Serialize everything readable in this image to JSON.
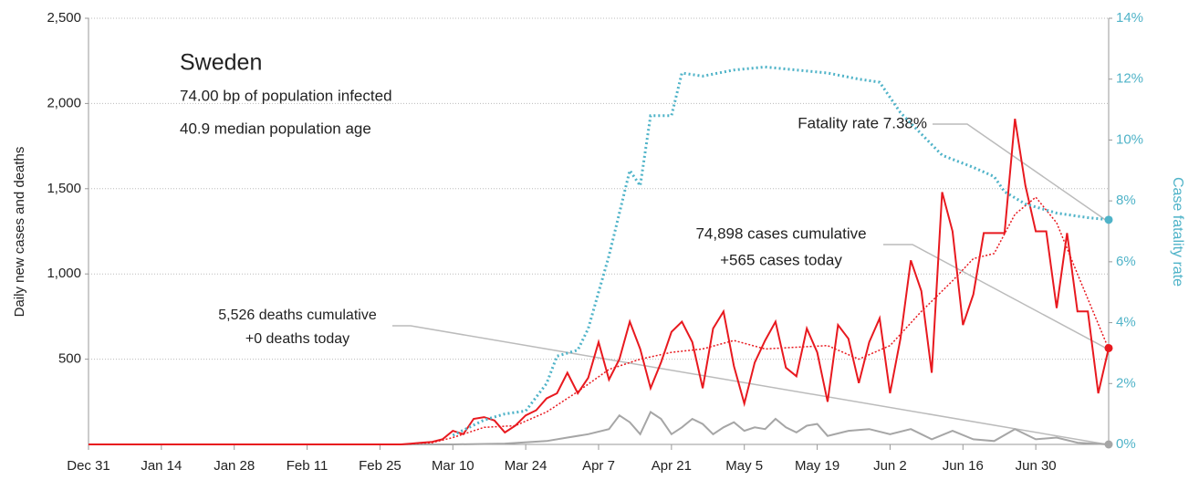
{
  "chart_data": {
    "type": "line",
    "ylabel": "Daily new cases and deaths",
    "y2label": "Case fatality rate",
    "annotations": {
      "title": "Sweden",
      "infected": "74.00 bp of population infected",
      "age": "40.9 median population age",
      "fatality": "Fatality rate 7.38%",
      "cases_cum": "74,898 cases cumulative",
      "cases_today": "+565 cases today",
      "deaths_cum": "5,526 deaths cumulative",
      "deaths_today": "+0 deaths today"
    },
    "xlim": [
      0,
      196
    ],
    "xticks": [
      {
        "value": 0,
        "label": "Dec 31"
      },
      {
        "value": 14,
        "label": "Jan 14"
      },
      {
        "value": 28,
        "label": "Jan 28"
      },
      {
        "value": 42,
        "label": "Feb 11"
      },
      {
        "value": 56,
        "label": "Feb 25"
      },
      {
        "value": 70,
        "label": "Mar 10"
      },
      {
        "value": 84,
        "label": "Mar 24"
      },
      {
        "value": 98,
        "label": "Apr 7"
      },
      {
        "value": 112,
        "label": "Apr 21"
      },
      {
        "value": 126,
        "label": "May 5"
      },
      {
        "value": 140,
        "label": "May 19"
      },
      {
        "value": 154,
        "label": "Jun 2"
      },
      {
        "value": 168,
        "label": "Jun 16"
      },
      {
        "value": 182,
        "label": "Jun 30"
      }
    ],
    "ylim": [
      0,
      2500
    ],
    "yticks": [
      {
        "value": 500,
        "label": "500"
      },
      {
        "value": 1000,
        "label": "1,000"
      },
      {
        "value": 1500,
        "label": "1,500"
      },
      {
        "value": 2000,
        "label": "2,000"
      },
      {
        "value": 2500,
        "label": "2,500"
      }
    ],
    "y2lim": [
      0,
      14
    ],
    "y2ticks": [
      {
        "value": 0,
        "label": "0%"
      },
      {
        "value": 2,
        "label": "2%"
      },
      {
        "value": 4,
        "label": "4%"
      },
      {
        "value": 6,
        "label": "6%"
      },
      {
        "value": 8,
        "label": "8%"
      },
      {
        "value": 10,
        "label": "10%"
      },
      {
        "value": 12,
        "label": "12%"
      },
      {
        "value": 14,
        "label": "14%"
      }
    ],
    "grid": true,
    "series": [
      {
        "name": "Daily cases",
        "color": "#e8191f",
        "style": "solid",
        "x": [
          0,
          60,
          62,
          64,
          66,
          68,
          70,
          72,
          74,
          76,
          78,
          80,
          82,
          84,
          86,
          88,
          90,
          92,
          94,
          96,
          98,
          100,
          102,
          104,
          106,
          108,
          110,
          112,
          114,
          116,
          118,
          120,
          122,
          124,
          126,
          128,
          130,
          132,
          134,
          136,
          138,
          140,
          142,
          144,
          146,
          148,
          150,
          152,
          154,
          156,
          158,
          160,
          162,
          164,
          166,
          168,
          170,
          172,
          174,
          176,
          178,
          180,
          182,
          184,
          186,
          188,
          190,
          192,
          194,
          196
        ],
        "values": [
          0,
          0,
          5,
          10,
          15,
          30,
          80,
          60,
          150,
          160,
          140,
          70,
          110,
          170,
          200,
          270,
          300,
          420,
          300,
          390,
          600,
          380,
          500,
          720,
          560,
          330,
          480,
          660,
          720,
          600,
          330,
          680,
          780,
          460,
          240,
          480,
          610,
          720,
          450,
          400,
          680,
          540,
          250,
          700,
          620,
          360,
          600,
          740,
          300,
          620,
          1080,
          900,
          420,
          1480,
          1250,
          700,
          880,
          1240,
          1240,
          1240,
          1910,
          1520,
          1250,
          1250,
          800,
          1240,
          780,
          780,
          300,
          565
        ]
      },
      {
        "name": "Cases average",
        "color": "#e8191f",
        "style": "dotted",
        "x": [
          0,
          60,
          66,
          70,
          76,
          82,
          88,
          94,
          100,
          106,
          112,
          118,
          124,
          130,
          136,
          142,
          148,
          154,
          160,
          166,
          170,
          174,
          178,
          182,
          186,
          190,
          196
        ],
        "values": [
          0,
          0,
          10,
          40,
          100,
          110,
          190,
          310,
          440,
          500,
          540,
          560,
          610,
          560,
          570,
          580,
          500,
          580,
          780,
          960,
          1090,
          1120,
          1350,
          1450,
          1300,
          1000,
          560
        ]
      },
      {
        "name": "Daily deaths",
        "color": "#a6a6a6",
        "style": "solid",
        "x": [
          0,
          70,
          80,
          88,
          92,
          96,
          100,
          102,
          104,
          106,
          108,
          110,
          112,
          114,
          116,
          118,
          120,
          122,
          124,
          126,
          128,
          130,
          132,
          134,
          136,
          138,
          140,
          142,
          146,
          150,
          154,
          158,
          162,
          166,
          170,
          174,
          178,
          182,
          186,
          190,
          196
        ],
        "values": [
          0,
          0,
          5,
          20,
          40,
          60,
          90,
          170,
          130,
          60,
          190,
          150,
          60,
          100,
          150,
          120,
          60,
          100,
          130,
          80,
          100,
          90,
          150,
          100,
          70,
          110,
          120,
          50,
          80,
          90,
          60,
          90,
          30,
          80,
          30,
          20,
          90,
          30,
          40,
          10,
          0
        ]
      },
      {
        "name": "Case fatality rate",
        "color": "#4fb3c8",
        "style": "dotted",
        "axis": "y2",
        "x": [
          70,
          76,
          80,
          84,
          88,
          90,
          94,
          96,
          100,
          104,
          106,
          108,
          112,
          114,
          118,
          124,
          130,
          136,
          142,
          148,
          152,
          156,
          160,
          164,
          170,
          174,
          176,
          180,
          186,
          192,
          196
        ],
        "values": [
          0.3,
          0.8,
          1,
          1.1,
          2,
          2.9,
          3.1,
          3.8,
          6.2,
          9,
          8.5,
          10.8,
          10.8,
          12.2,
          12.1,
          12.3,
          12.4,
          12.3,
          12.2,
          12,
          11.9,
          10.9,
          10.2,
          9.5,
          9.1,
          8.8,
          8.3,
          7.9,
          7.6,
          7.45,
          7.38
        ]
      }
    ]
  }
}
